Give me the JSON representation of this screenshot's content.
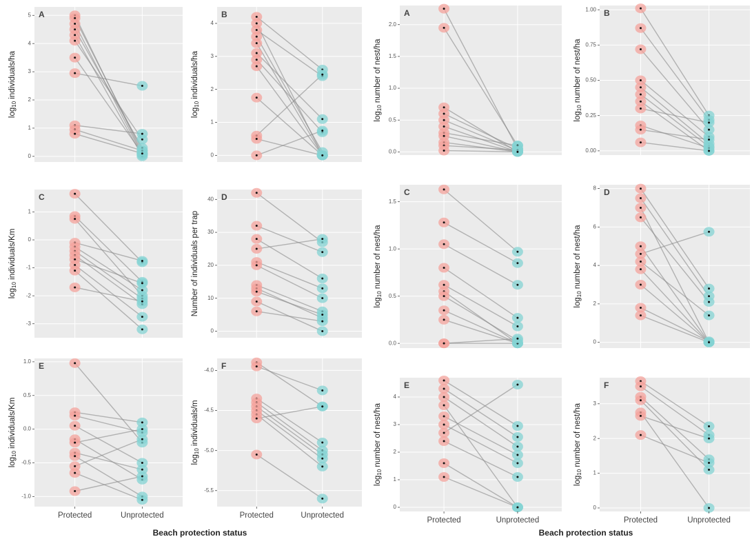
{
  "chart_data": [
    {
      "type": "slope",
      "panel_label": "A",
      "y_label": "log10 individuals/ha",
      "ylim": [
        -0.2,
        5.3
      ],
      "yticks": [
        0,
        1,
        2,
        3,
        4,
        5
      ],
      "point_colors": [
        "#f4a39c",
        "#84d3d3"
      ],
      "line_color": "#8a8a8a",
      "series": [
        {
          "values": [
            5.0,
            0.1
          ]
        },
        {
          "values": [
            4.9,
            0.2
          ]
        },
        {
          "values": [
            4.7,
            0.05
          ]
        },
        {
          "values": [
            4.5,
            0.3
          ]
        },
        {
          "values": [
            4.3,
            0
          ]
        },
        {
          "values": [
            4.1,
            0.6
          ]
        },
        {
          "values": [
            3.5,
            0.1
          ]
        },
        {
          "values": [
            2.95,
            2.5
          ]
        },
        {
          "values": [
            1.1,
            0.8
          ]
        },
        {
          "values": [
            0.95,
            0.2
          ]
        },
        {
          "values": [
            0.8,
            0.1
          ]
        }
      ]
    },
    {
      "type": "slope",
      "panel_label": "B",
      "y_label": "log10 individuals/ha",
      "ylim": [
        -0.2,
        4.5
      ],
      "yticks": [
        0,
        1,
        2,
        3,
        4
      ],
      "point_colors": [
        "#f4a39c",
        "#84d3d3"
      ],
      "line_color": "#8a8a8a",
      "series": [
        {
          "values": [
            4.2,
            2.6
          ]
        },
        {
          "values": [
            4.0,
            0
          ]
        },
        {
          "values": [
            3.8,
            2.4
          ]
        },
        {
          "values": [
            3.6,
            0.1
          ]
        },
        {
          "values": [
            3.4,
            0
          ]
        },
        {
          "values": [
            3.1,
            1.1
          ]
        },
        {
          "values": [
            2.9,
            0.7
          ]
        },
        {
          "values": [
            2.7,
            0
          ]
        },
        {
          "values": [
            1.75,
            0
          ]
        },
        {
          "values": [
            0.6,
            2.45
          ]
        },
        {
          "values": [
            0.5,
            0
          ]
        },
        {
          "values": [
            0,
            0.75
          ]
        }
      ]
    },
    {
      "type": "slope",
      "panel_label": "C",
      "y_label": "log10 individuals/Km",
      "ylim": [
        -3.5,
        1.8
      ],
      "yticks": [
        -3,
        -2,
        -1,
        0,
        1
      ],
      "point_colors": [
        "#f4a39c",
        "#84d3d3"
      ],
      "line_color": "#8a8a8a",
      "series": [
        {
          "values": [
            1.65,
            -0.8
          ]
        },
        {
          "values": [
            0.85,
            -1.5
          ]
        },
        {
          "values": [
            0.75,
            -2.0
          ]
        },
        {
          "values": [
            -0.1,
            -0.75
          ]
        },
        {
          "values": [
            -0.25,
            -1.8
          ]
        },
        {
          "values": [
            -0.4,
            -2.1
          ]
        },
        {
          "values": [
            -0.55,
            -2.3
          ]
        },
        {
          "values": [
            -0.7,
            -1.55
          ]
        },
        {
          "values": [
            -0.9,
            -2.75
          ]
        },
        {
          "values": [
            -1.1,
            -3.2
          ]
        },
        {
          "values": [
            -1.7,
            -2.2
          ]
        }
      ]
    },
    {
      "type": "slope",
      "panel_label": "D",
      "y_label": "Number of individuals per trap",
      "ylim": [
        -2,
        43
      ],
      "yticks": [
        0,
        10,
        20,
        30,
        40
      ],
      "point_colors": [
        "#f4a39c",
        "#84d3d3"
      ],
      "line_color": "#8a8a8a",
      "series": [
        {
          "values": [
            42,
            27
          ]
        },
        {
          "values": [
            32,
            24
          ]
        },
        {
          "values": [
            28,
            16
          ]
        },
        {
          "values": [
            25,
            28
          ]
        },
        {
          "values": [
            21,
            13
          ]
        },
        {
          "values": [
            20,
            10
          ]
        },
        {
          "values": [
            14,
            6
          ]
        },
        {
          "values": [
            13,
            4
          ]
        },
        {
          "values": [
            12,
            5
          ]
        },
        {
          "values": [
            9,
            0
          ]
        },
        {
          "values": [
            6,
            3
          ]
        }
      ]
    },
    {
      "type": "slope",
      "panel_label": "E",
      "y_label": "log10 individuals/Km",
      "ylim": [
        -1.15,
        1.05
      ],
      "yticks": [
        {
          "value": -1,
          "label": "-1.0"
        },
        {
          "value": -0.5,
          "label": "-0.5"
        },
        {
          "value": 0,
          "label": "0.0"
        },
        {
          "value": 0.5,
          "label": "0.5"
        },
        {
          "value": 1,
          "label": "1.0"
        }
      ],
      "point_colors": [
        "#f4a39c",
        "#84d3d3"
      ],
      "line_color": "#8a8a8a",
      "categories": [
        "Protected",
        "Unprotected"
      ],
      "x_label": "Beach protection status",
      "series": [
        {
          "values": [
            0.98,
            -0.2
          ]
        },
        {
          "values": [
            0.25,
            0.1
          ]
        },
        {
          "values": [
            0.2,
            -0.05
          ]
        },
        {
          "values": [
            0.05,
            -0.5
          ]
        },
        {
          "values": [
            -0.15,
            -0.75
          ]
        },
        {
          "values": [
            -0.2,
            0
          ]
        },
        {
          "values": [
            -0.35,
            -0.6
          ]
        },
        {
          "values": [
            -0.4,
            -1.0
          ]
        },
        {
          "values": [
            -0.55,
            -0.15
          ]
        },
        {
          "values": [
            -0.65,
            -1.05
          ]
        },
        {
          "values": [
            -0.92,
            -0.7
          ]
        }
      ]
    },
    {
      "type": "slope",
      "panel_label": "F",
      "y_label": "log10 individuals/m",
      "ylim": [
        -5.7,
        -3.85
      ],
      "yticks": [
        {
          "value": -5.5,
          "label": "-5.5"
        },
        {
          "value": -5,
          "label": "-5.0"
        },
        {
          "value": -4.5,
          "label": "-4.5"
        },
        {
          "value": -4,
          "label": "-4.0"
        }
      ],
      "point_colors": [
        "#f4a39c",
        "#84d3d3"
      ],
      "line_color": "#8a8a8a",
      "categories": [
        "Protected",
        "Unprotected"
      ],
      "series": [
        {
          "values": [
            -3.9,
            -4.45
          ]
        },
        {
          "values": [
            -3.95,
            -4.25
          ]
        },
        {
          "values": [
            -4.35,
            -4.9
          ]
        },
        {
          "values": [
            -4.4,
            -5.0
          ]
        },
        {
          "values": [
            -4.45,
            -5.05
          ]
        },
        {
          "values": [
            -4.5,
            -5.1
          ]
        },
        {
          "values": [
            -4.55,
            -5.2
          ]
        },
        {
          "values": [
            -4.6,
            -4.45
          ]
        },
        {
          "values": [
            -5.05,
            -5.6
          ]
        }
      ]
    },
    {
      "type": "slope",
      "panel_label": "A",
      "y_label": "log10 number of nest/ha",
      "ylim": [
        -0.05,
        2.3
      ],
      "yticks": [
        {
          "value": 0,
          "label": "0.0"
        },
        {
          "value": 0.5,
          "label": "0.5"
        },
        {
          "value": 1,
          "label": "1.0"
        },
        {
          "value": 1.5,
          "label": "1.5"
        },
        {
          "value": 2,
          "label": "2.0"
        }
      ],
      "point_colors": [
        "#f4a39c",
        "#84d3d3"
      ],
      "line_color": "#8a8a8a",
      "series": [
        {
          "values": [
            2.25,
            0.05
          ]
        },
        {
          "values": [
            1.95,
            0.1
          ]
        },
        {
          "values": [
            0.7,
            0
          ]
        },
        {
          "values": [
            0.6,
            0.05
          ]
        },
        {
          "values": [
            0.5,
            0.02
          ]
        },
        {
          "values": [
            0.4,
            0
          ]
        },
        {
          "values": [
            0.3,
            0.1
          ]
        },
        {
          "values": [
            0.25,
            0
          ]
        },
        {
          "values": [
            0.15,
            0
          ]
        },
        {
          "values": [
            0.1,
            0.03
          ]
        },
        {
          "values": [
            0.02,
            0
          ]
        }
      ]
    },
    {
      "type": "slope",
      "panel_label": "B",
      "y_label": "log10 number of nest/ha",
      "ylim": [
        -0.03,
        1.03
      ],
      "yticks": [
        {
          "value": 0,
          "label": "0.00"
        },
        {
          "value": 0.25,
          "label": "0.25"
        },
        {
          "value": 0.5,
          "label": "0.50"
        },
        {
          "value": 0.75,
          "label": "0.75"
        },
        {
          "value": 1,
          "label": "1.00"
        }
      ],
      "point_colors": [
        "#f4a39c",
        "#84d3d3"
      ],
      "line_color": "#8a8a8a",
      "series": [
        {
          "values": [
            1.01,
            0.25
          ]
        },
        {
          "values": [
            0.87,
            0.22
          ]
        },
        {
          "values": [
            0.72,
            0.15
          ]
        },
        {
          "values": [
            0.5,
            0.1
          ]
        },
        {
          "values": [
            0.45,
            0.05
          ]
        },
        {
          "values": [
            0.4,
            0.03
          ]
        },
        {
          "values": [
            0.35,
            0
          ]
        },
        {
          "values": [
            0.3,
            0.2
          ]
        },
        {
          "values": [
            0.18,
            0.02
          ]
        },
        {
          "values": [
            0.15,
            0.08
          ]
        },
        {
          "values": [
            0.06,
            0
          ]
        }
      ]
    },
    {
      "type": "slope",
      "panel_label": "C",
      "y_label": "log10 number of nest/ha",
      "ylim": [
        -0.05,
        1.68
      ],
      "yticks": [
        {
          "value": 0,
          "label": "0.0"
        },
        {
          "value": 0.5,
          "label": "0.5"
        },
        {
          "value": 1,
          "label": "1.0"
        },
        {
          "value": 1.5,
          "label": "1.5"
        }
      ],
      "point_colors": [
        "#f4a39c",
        "#84d3d3"
      ],
      "line_color": "#8a8a8a",
      "series": [
        {
          "values": [
            1.63,
            0.97
          ]
        },
        {
          "values": [
            1.28,
            0.85
          ]
        },
        {
          "values": [
            1.05,
            0.62
          ]
        },
        {
          "values": [
            0.8,
            0.27
          ]
        },
        {
          "values": [
            0.62,
            0.18
          ]
        },
        {
          "values": [
            0.55,
            0
          ]
        },
        {
          "values": [
            0.5,
            0.03
          ]
        },
        {
          "values": [
            0.35,
            0
          ]
        },
        {
          "values": [
            0.25,
            0
          ]
        },
        {
          "values": [
            0,
            0
          ]
        },
        {
          "values": [
            0,
            0.05
          ]
        }
      ]
    },
    {
      "type": "slope",
      "panel_label": "D",
      "y_label": "log10 number of nest/ha",
      "ylim": [
        -0.3,
        8.2
      ],
      "yticks": [
        0,
        2,
        4,
        6,
        8
      ],
      "point_colors": [
        "#f4a39c",
        "#84d3d3"
      ],
      "line_color": "#8a8a8a",
      "series": [
        {
          "values": [
            8.0,
            2.8
          ]
        },
        {
          "values": [
            7.5,
            2.4
          ]
        },
        {
          "values": [
            7.0,
            0
          ]
        },
        {
          "values": [
            6.5,
            2.1
          ]
        },
        {
          "values": [
            5.0,
            0
          ]
        },
        {
          "values": [
            4.6,
            5.75
          ]
        },
        {
          "values": [
            4.2,
            1.4
          ]
        },
        {
          "values": [
            3.8,
            0
          ]
        },
        {
          "values": [
            3.0,
            0
          ]
        },
        {
          "values": [
            1.8,
            0.05
          ]
        },
        {
          "values": [
            1.4,
            0
          ]
        }
      ]
    },
    {
      "type": "slope",
      "panel_label": "E",
      "y_label": "log10 number of nest/ha",
      "ylim": [
        -0.15,
        4.7
      ],
      "yticks": [
        0,
        1,
        2,
        3,
        4
      ],
      "point_colors": [
        "#f4a39c",
        "#84d3d3"
      ],
      "line_color": "#8a8a8a",
      "categories": [
        "Protected",
        "Unprotected"
      ],
      "x_label": "Beach protection status",
      "series": [
        {
          "values": [
            4.6,
            2.95
          ]
        },
        {
          "values": [
            4.3,
            2.55
          ]
        },
        {
          "values": [
            4.0,
            2.2
          ]
        },
        {
          "values": [
            3.7,
            0
          ]
        },
        {
          "values": [
            3.3,
            1.9
          ]
        },
        {
          "values": [
            3.0,
            1.6
          ]
        },
        {
          "values": [
            2.7,
            4.45
          ]
        },
        {
          "values": [
            2.4,
            1.1
          ]
        },
        {
          "values": [
            1.6,
            0
          ]
        },
        {
          "values": [
            1.1,
            0
          ]
        }
      ]
    },
    {
      "type": "slope",
      "panel_label": "F",
      "y_label": "log10 number of nest/ha",
      "ylim": [
        -0.1,
        3.75
      ],
      "yticks": [
        0,
        1,
        2,
        3
      ],
      "point_colors": [
        "#f4a39c",
        "#84d3d3"
      ],
      "line_color": "#8a8a8a",
      "categories": [
        "Protected",
        "Unprotected"
      ],
      "series": [
        {
          "values": [
            3.65,
            2.35
          ]
        },
        {
          "values": [
            3.5,
            2.1
          ]
        },
        {
          "values": [
            3.2,
            1.4
          ]
        },
        {
          "values": [
            3.1,
            1.1
          ]
        },
        {
          "values": [
            2.75,
            0
          ]
        },
        {
          "values": [
            2.65,
            2.0
          ]
        },
        {
          "values": [
            2.1,
            1.3
          ]
        }
      ]
    }
  ]
}
